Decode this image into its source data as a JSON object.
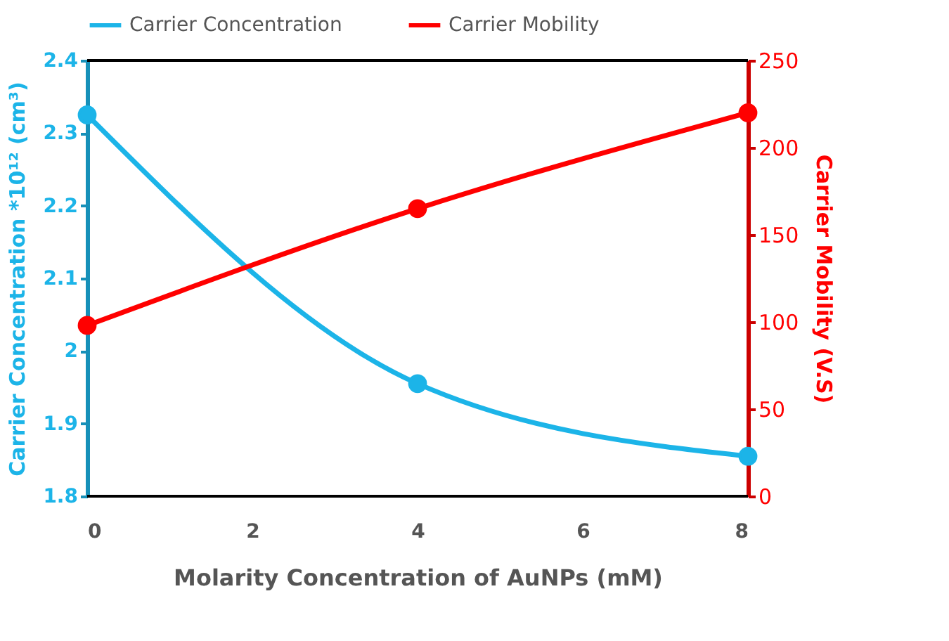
{
  "chart_data": {
    "type": "line",
    "xlabel": "Molarity Concentration of AuNPs (mM)",
    "ylabel": "Carrier Concentration  *10¹² (cm³)",
    "y2label": "Carrier Mobility (V.S)",
    "x": [
      0,
      4,
      8
    ],
    "xlim": [
      0,
      8
    ],
    "xticks": [
      0,
      2,
      4,
      6,
      8
    ],
    "ylim": [
      1.8,
      2.4
    ],
    "yticks": [
      1.8,
      1.9,
      2.0,
      2.1,
      2.2,
      2.3,
      2.4
    ],
    "y2lim": [
      0,
      250
    ],
    "y2ticks": [
      0,
      50,
      100,
      150,
      200,
      250
    ],
    "series": [
      {
        "name": "Carrier Concentration",
        "color": "#1cb4e8",
        "values": [
          2.325,
          1.955,
          1.855
        ]
      },
      {
        "name": "Carrier Mobility",
        "color": "#ff0000",
        "values": [
          98,
          165,
          220
        ],
        "axis": "y2"
      }
    ],
    "marker": "circle",
    "line_style": "solid",
    "legend": "top",
    "grid": false
  }
}
